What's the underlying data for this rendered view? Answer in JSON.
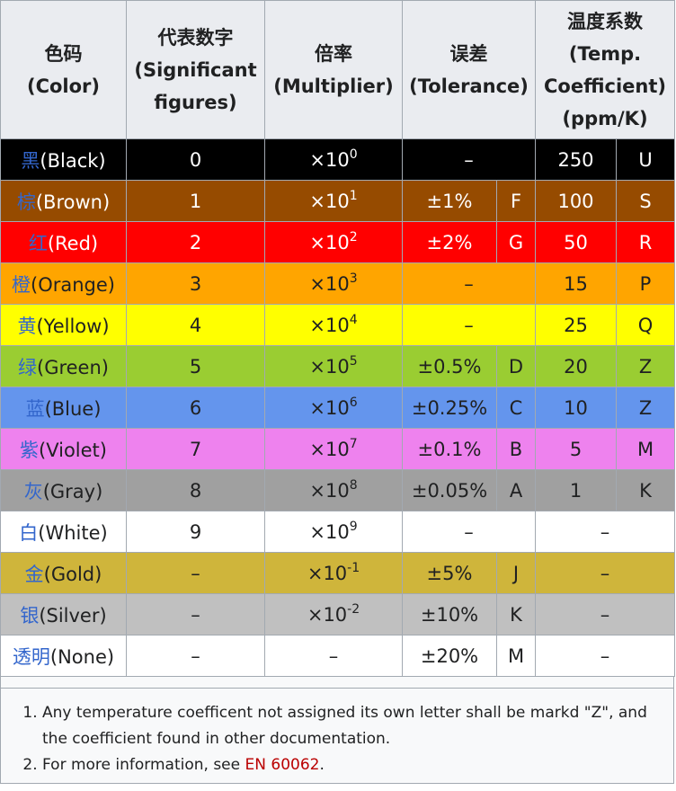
{
  "headers": {
    "color": [
      "色码",
      "(Color)"
    ],
    "digits": [
      "代表数字",
      "(Significant",
      "figures)"
    ],
    "multiplier": [
      "倍率",
      "(Multiplier)"
    ],
    "tolerance": [
      "误差",
      "(Tolerance)"
    ],
    "tempco": [
      "温度系数",
      "(Temp.",
      "Coefficient)",
      "(ppm/K)"
    ]
  },
  "rows": [
    {
      "zh": "黑",
      "en": "(Black)",
      "bg": "#000000",
      "fg": "#ffffff",
      "digit": "0",
      "mult_base": "×10",
      "mult_exp": "0",
      "tol": "–",
      "tol_letter": "",
      "tc": "250",
      "tc_letter": "U",
      "tc_bg": "#000000",
      "tc_fg": "#ffffff"
    },
    {
      "zh": "棕",
      "en": "(Brown)",
      "bg": "#964b00",
      "fg": "#ffffff",
      "digit": "1",
      "mult_base": "×10",
      "mult_exp": "1",
      "tol": "±1%",
      "tol_letter": "F",
      "tc": "100",
      "tc_letter": "S",
      "tc_bg": "#964b00",
      "tc_fg": "#ffffff"
    },
    {
      "zh": "红",
      "en": "(Red)",
      "bg": "#ff0000",
      "fg": "#ffffff",
      "digit": "2",
      "mult_base": "×10",
      "mult_exp": "2",
      "tol": "±2%",
      "tol_letter": "G",
      "tc": "50",
      "tc_letter": "R",
      "tc_bg": "#ff0000",
      "tc_fg": "#ffffff"
    },
    {
      "zh": "橙",
      "en": "(Orange)",
      "bg": "#ffa500",
      "fg": "#202122",
      "digit": "3",
      "mult_base": "×10",
      "mult_exp": "3",
      "tol": "–",
      "tol_letter": "",
      "tc": "15",
      "tc_letter": "P",
      "tc_bg": "#ffa500",
      "tc_fg": "#202122"
    },
    {
      "zh": "黄",
      "en": "(Yellow)",
      "bg": "#ffff00",
      "fg": "#202122",
      "digit": "4",
      "mult_base": "×10",
      "mult_exp": "4",
      "tol": "–",
      "tol_letter": "",
      "tc": "25",
      "tc_letter": "Q",
      "tc_bg": "#ffff00",
      "tc_fg": "#202122"
    },
    {
      "zh": "绿",
      "en": "(Green)",
      "bg": "#9acd32",
      "fg": "#202122",
      "digit": "5",
      "mult_base": "×10",
      "mult_exp": "5",
      "tol": "±0.5%",
      "tol_letter": "D",
      "tc": "20",
      "tc_letter": "Z",
      "tc_bg": "#9acd32",
      "tc_fg": "#202122"
    },
    {
      "zh": "蓝",
      "en": "(Blue)",
      "bg": "#6495ed",
      "fg": "#202122",
      "digit": "6",
      "mult_base": "×10",
      "mult_exp": "6",
      "tol": "±0.25%",
      "tol_letter": "C",
      "tc": "10",
      "tc_letter": "Z",
      "tc_bg": "#6495ed",
      "tc_fg": "#202122"
    },
    {
      "zh": "紫",
      "en": "(Violet)",
      "bg": "#ee82ee",
      "fg": "#202122",
      "digit": "7",
      "mult_base": "×10",
      "mult_exp": "7",
      "tol": "±0.1%",
      "tol_letter": "B",
      "tc": "5",
      "tc_letter": "M",
      "tc_bg": "#ee82ee",
      "tc_fg": "#202122"
    },
    {
      "zh": "灰",
      "en": "(Gray)",
      "bg": "#a0a0a0",
      "fg": "#202122",
      "digit": "8",
      "mult_base": "×10",
      "mult_exp": "8",
      "tol": "±0.05%",
      "tol_letter": "A",
      "tc": "1",
      "tc_letter": "K",
      "tc_bg": "#a0a0a0",
      "tc_fg": "#202122"
    },
    {
      "zh": "白",
      "en": "(White)",
      "bg": "#ffffff",
      "fg": "#202122",
      "digit": "9",
      "mult_base": "×10",
      "mult_exp": "9",
      "tol": "–",
      "tol_letter": "",
      "tc": "–",
      "tc_letter": "",
      "tc_bg": "#ffffff",
      "tc_fg": "#202122"
    },
    {
      "zh": "金",
      "en": "(Gold)",
      "bg": "#cfb53b",
      "fg": "#202122",
      "digit": "–",
      "mult_base": "×10",
      "mult_exp": "-1",
      "tol": "±5%",
      "tol_letter": "J",
      "tc": "–",
      "tc_letter": "",
      "tc_bg": "#cfb53b",
      "tc_fg": "#202122"
    },
    {
      "zh": "银",
      "en": "(Silver)",
      "bg": "#c0c0c0",
      "fg": "#202122",
      "digit": "–",
      "mult_base": "×10",
      "mult_exp": "-2",
      "tol": "±10%",
      "tol_letter": "K",
      "tc": "–",
      "tc_letter": "",
      "tc_bg": "#c0c0c0",
      "tc_fg": "#202122"
    },
    {
      "zh": "透明",
      "en": "(None)",
      "bg": "#ffffff",
      "fg": "#202122",
      "digit": "–",
      "mult_base": "–",
      "mult_exp": "",
      "tol": "±20%",
      "tol_letter": "M",
      "tc": "–",
      "tc_letter": "",
      "tc_bg": "#ffffff",
      "tc_fg": "#202122"
    }
  ],
  "notes": [
    {
      "text": "Any temperature coefficent not assigned its own letter shall be markd \"Z\", and the coefficient found in other documentation.",
      "link": ""
    },
    {
      "text": "For more information, see ",
      "link": "EN 60062",
      "after": "."
    }
  ],
  "link_color": "#ba0000",
  "zh_link_color": "#3366cc"
}
